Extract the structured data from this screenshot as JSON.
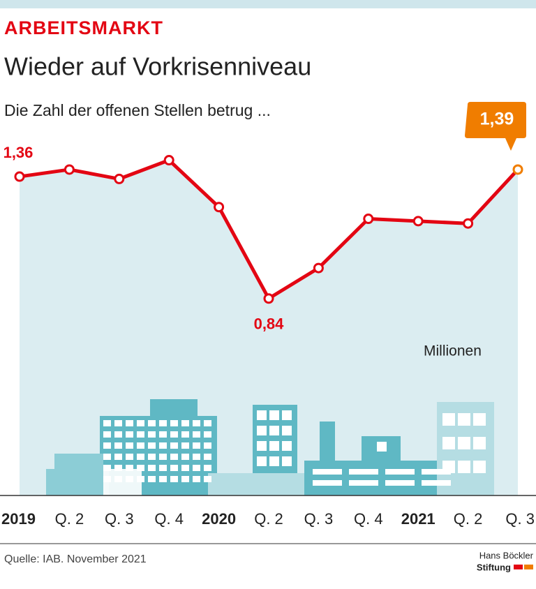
{
  "chart_data": {
    "type": "line",
    "kicker": "ARBEITSMARKT",
    "title": "Wieder auf Vorkrisenniveau",
    "subtitle": "Die Zahl der offenen Stellen betrug ...",
    "unit_label": "Millionen",
    "categories": [
      "2019",
      "Q. 2",
      "Q. 3",
      "Q. 4",
      "2020",
      "Q. 2",
      "Q. 3",
      "Q. 4",
      "2021",
      "Q. 2",
      "Q. 3"
    ],
    "values": [
      1.36,
      1.39,
      1.35,
      1.43,
      1.23,
      0.84,
      0.97,
      1.18,
      1.17,
      1.16,
      1.39
    ],
    "value_labels": [
      "1,36",
      null,
      null,
      null,
      null,
      "0,84",
      null,
      null,
      null,
      null,
      "1,39"
    ],
    "color": "#e30613",
    "highlight_color": "#f07d00",
    "area_color": "#dbedf1",
    "ylim": [
      0,
      1.5
    ],
    "source": "Quelle: IAB. November 2021",
    "logo": [
      "Hans Böckler",
      "Stiftung"
    ]
  }
}
